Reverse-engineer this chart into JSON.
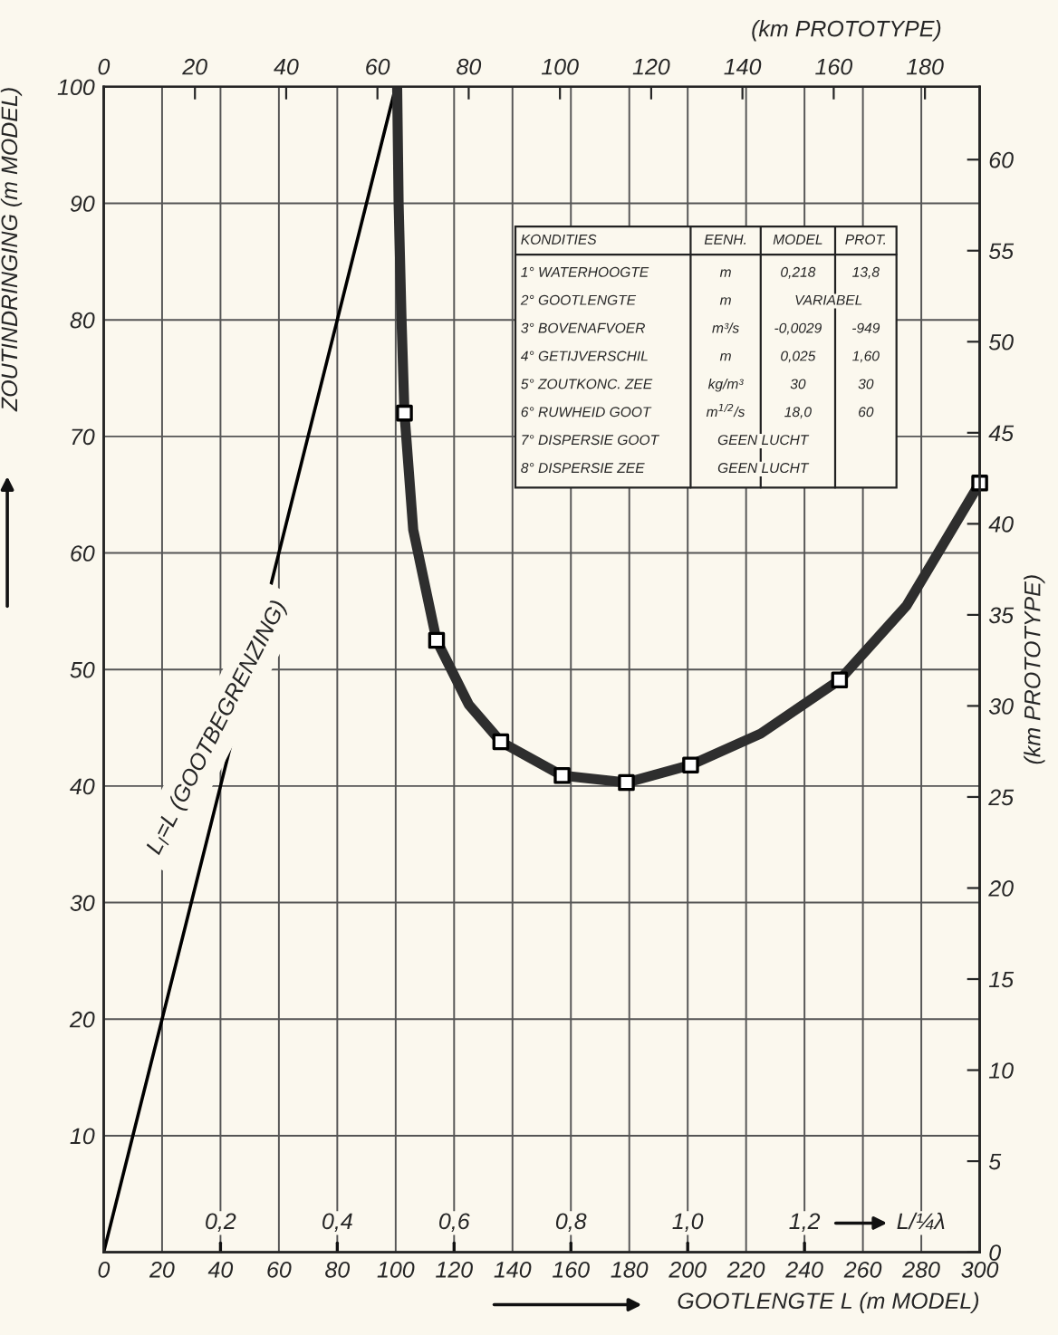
{
  "chart_data": {
    "type": "line",
    "xlabel": "GOOTLENGTE L (m MODEL)",
    "ylabel": "ZOUTINDRINGING (m MODEL)",
    "x2label": "(km PROTOTYPE)",
    "y2label": "(km PROTOTYPE)",
    "xlim": [
      0,
      300
    ],
    "xticks": [
      0,
      20,
      40,
      60,
      80,
      100,
      120,
      140,
      160,
      180,
      200,
      220,
      240,
      260,
      280,
      300
    ],
    "ylim": [
      0,
      100
    ],
    "yticks": [
      {
        "value": 0,
        "label": null
      },
      10,
      20,
      30,
      40,
      50,
      60,
      70,
      80,
      90,
      100
    ],
    "x2lim": [
      0,
      192
    ],
    "x2ticks": [
      0,
      20,
      40,
      60,
      80,
      100,
      120,
      140,
      160,
      180
    ],
    "y2lim": [
      0,
      64
    ],
    "y2ticks": [
      0,
      5,
      10,
      15,
      20,
      25,
      30,
      35,
      40,
      45,
      50,
      55,
      60
    ],
    "grid": true,
    "series": [
      {
        "color": "#000000",
        "line_style": "solid",
        "marker": "none",
        "x": [
          0,
          100
        ],
        "values": [
          0,
          100
        ]
      },
      {
        "color": "#2e2e2e",
        "line_style": "solid",
        "marker": "none",
        "x": [
          100.5,
          101,
          102,
          103,
          106,
          114,
          125,
          136,
          157,
          179,
          201,
          225,
          252,
          275,
          300
        ],
        "values": [
          100,
          90,
          80,
          72,
          62,
          52.5,
          47,
          43.8,
          40.9,
          40.3,
          41.8,
          44.5,
          49.1,
          55.5,
          66
        ]
      },
      {
        "type": "scatter",
        "color": "#000000",
        "marker": "square",
        "x": [
          103,
          114,
          136,
          157,
          179,
          201,
          252,
          300
        ],
        "values": [
          72,
          52.5,
          43.8,
          40.9,
          40.3,
          41.8,
          49.1,
          66
        ]
      }
    ],
    "annotations": [
      "L$_{l}$=L (GOOTBEGRENZING)",
      "0,2",
      "0,4",
      "0,6",
      "0,8",
      "1,0",
      "1,2",
      "L/¼λ",
      "KONDITIES",
      "EENH.",
      "MODEL",
      "PROT.",
      "1° WATERHOOGTE",
      "m",
      "0,218",
      "13,8",
      "2° GOOTLENGTE",
      "m",
      "VARIABEL",
      "3° BOVENAFVOER",
      "m³/s",
      "-0,0029",
      "-949",
      "4° GETIJVERSCHIL",
      "m",
      "0,025",
      "1,60",
      "5° ZOUTKONC. ZEE",
      "kg/m³",
      "30",
      "30",
      "6° RUWHEID GOOT",
      "m$^{1/2}$/s",
      "18,0",
      "60",
      "7° DISPERSIE GOOT",
      "GEEN LUCHT",
      "8° DISPERSIE ZEE",
      "GEEN LUCHT"
    ]
  }
}
